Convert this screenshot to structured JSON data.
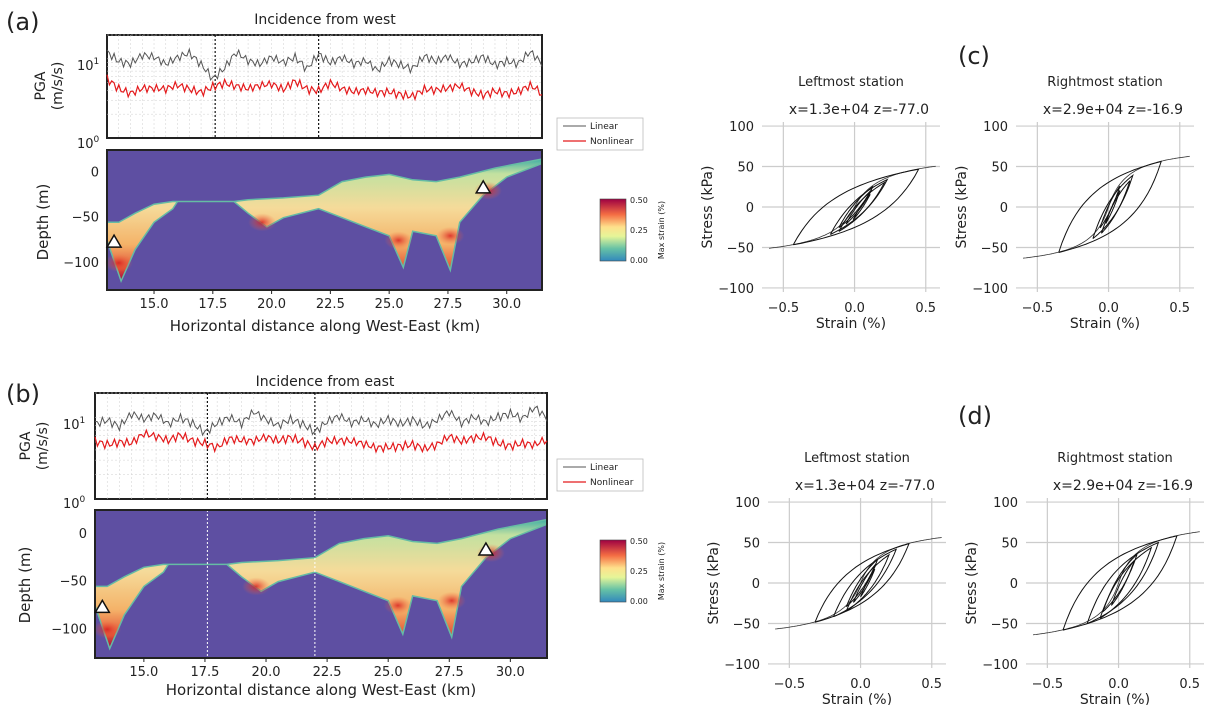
{
  "figure": {
    "panel_labels": {
      "a": "(a)",
      "b": "(b)",
      "c": "(c)",
      "d": "(d)"
    },
    "legend": {
      "linear": "Linear",
      "nonlinear": "Nonlinear"
    },
    "colors": {
      "linear": "#555555",
      "nonlinear": "#e41a1c",
      "domain": "#5e4fa2",
      "frame": "#222222",
      "grid": "#cccccc"
    }
  },
  "chart_data": [
    {
      "id": "a-pga",
      "type": "line",
      "title": "Incidence from west",
      "ylabel": "PGA\n(m/s/s)",
      "yscale": "log",
      "ylim": [
        1,
        20
      ],
      "xlim": [
        13.0,
        31.5
      ],
      "yticks": [
        "10^0",
        "10^1"
      ],
      "vlines": [
        17.6,
        22.0
      ],
      "series": [
        {
          "name": "Linear",
          "x": [
            13.0,
            13.5,
            14.0,
            14.5,
            15.0,
            15.5,
            16.0,
            16.5,
            17.0,
            17.5,
            18.0,
            18.5,
            19.0,
            19.5,
            20.0,
            20.5,
            21.0,
            21.5,
            22.0,
            22.5,
            23.0,
            23.5,
            24.0,
            24.5,
            25.0,
            25.5,
            26.0,
            26.5,
            27.0,
            27.5,
            28.0,
            28.5,
            29.0,
            29.5,
            30.0,
            30.5,
            31.0,
            31.5
          ],
          "y": [
            13,
            10,
            9,
            11,
            10,
            8,
            10,
            12,
            9,
            6,
            8,
            12,
            9,
            8,
            10,
            9,
            11,
            8,
            12,
            9,
            10,
            8,
            9,
            7,
            10,
            9,
            8,
            11,
            9,
            10,
            8,
            9,
            11,
            9,
            10,
            9,
            12,
            8
          ]
        },
        {
          "name": "Nonlinear",
          "x": [
            13.0,
            13.5,
            14.0,
            14.5,
            15.0,
            15.5,
            16.0,
            16.5,
            17.0,
            17.5,
            18.0,
            18.5,
            19.0,
            19.5,
            20.0,
            20.5,
            21.0,
            21.5,
            22.0,
            22.5,
            23.0,
            23.5,
            24.0,
            24.5,
            25.0,
            25.5,
            26.0,
            26.5,
            27.0,
            27.5,
            28.0,
            28.5,
            29.0,
            29.5,
            30.0,
            30.5,
            31.0,
            31.5
          ],
          "y": [
            6,
            4.5,
            3.8,
            4.2,
            4.0,
            3.9,
            4.5,
            4.2,
            4.0,
            4.8,
            5.2,
            4.5,
            4.0,
            4.3,
            4.6,
            4.1,
            5.5,
            4.5,
            4.2,
            5.0,
            4.0,
            3.6,
            3.8,
            3.7,
            4.0,
            3.8,
            3.6,
            4.2,
            3.9,
            4.0,
            4.3,
            3.8,
            3.6,
            4.2,
            3.9,
            4.0,
            4.5,
            3.5
          ]
        }
      ]
    },
    {
      "id": "a-strain",
      "type": "heatmap",
      "xlabel": "Horizontal distance along West-East (km)",
      "ylabel": "Depth (m)",
      "xlim": [
        13.0,
        31.5
      ],
      "ylim": [
        -130,
        25
      ],
      "xticks": [
        "15.0",
        "17.5",
        "20.0",
        "22.5",
        "25.0",
        "27.5",
        "30.0"
      ],
      "yticks": [
        "0",
        "−50",
        "−100"
      ],
      "colorbar": {
        "label": "Max strain (%)",
        "ticks": [
          "0.50",
          "0.25",
          "0.00"
        ],
        "range": [
          0,
          0.5
        ]
      },
      "stations": [
        {
          "x": 13.3,
          "z": -77.0
        },
        {
          "x": 29.0,
          "z": -16.9
        }
      ],
      "top_profile": [
        [
          13.0,
          -55
        ],
        [
          13.5,
          -55
        ],
        [
          14.2,
          -45
        ],
        [
          15.0,
          -35
        ],
        [
          15.8,
          -32
        ],
        [
          16.0,
          -32
        ],
        [
          18.4,
          -32
        ],
        [
          19.0,
          -30
        ],
        [
          20.5,
          -28
        ],
        [
          22.0,
          -25
        ],
        [
          23.0,
          -10
        ],
        [
          24.0,
          -5
        ],
        [
          25.0,
          -2
        ],
        [
          26.0,
          -8
        ],
        [
          27.0,
          -10
        ],
        [
          28.0,
          -5
        ],
        [
          29.5,
          5
        ],
        [
          30.5,
          10
        ],
        [
          31.5,
          15
        ]
      ],
      "bottom_profile": [
        [
          13.0,
          -75
        ],
        [
          13.6,
          -120
        ],
        [
          14.2,
          -85
        ],
        [
          15.0,
          -55
        ],
        [
          15.8,
          -40
        ],
        [
          16.0,
          -32
        ],
        [
          18.4,
          -32
        ],
        [
          19.0,
          -45
        ],
        [
          19.8,
          -60
        ],
        [
          20.5,
          -50
        ],
        [
          22.0,
          -40
        ],
        [
          23.0,
          -50
        ],
        [
          24.0,
          -60
        ],
        [
          25.0,
          -70
        ],
        [
          25.6,
          -105
        ],
        [
          26.0,
          -65
        ],
        [
          27.0,
          -70
        ],
        [
          27.6,
          -108
        ],
        [
          28.0,
          -55
        ],
        [
          29.0,
          -25
        ],
        [
          30.0,
          -5
        ],
        [
          31.0,
          5
        ],
        [
          31.5,
          10
        ]
      ]
    },
    {
      "id": "b-pga",
      "type": "line",
      "title": "Incidence from east",
      "ylabel": "PGA\n(m/s/s)",
      "yscale": "log",
      "ylim": [
        1,
        20
      ],
      "xlim": [
        13.0,
        31.5
      ],
      "yticks": [
        "10^0",
        "10^1"
      ],
      "vlines": [
        17.6,
        22.0
      ],
      "series": [
        {
          "name": "Linear",
          "x": [
            13.0,
            13.5,
            14.0,
            14.5,
            15.0,
            15.5,
            16.0,
            16.5,
            17.0,
            17.5,
            18.0,
            18.5,
            19.0,
            19.5,
            20.0,
            20.5,
            21.0,
            21.5,
            22.0,
            22.5,
            23.0,
            23.5,
            24.0,
            24.5,
            25.0,
            25.5,
            26.0,
            26.5,
            27.0,
            27.5,
            28.0,
            28.5,
            29.0,
            29.5,
            30.0,
            30.5,
            31.0,
            31.5
          ],
          "y": [
            9,
            10,
            8,
            11,
            9,
            10,
            8,
            10,
            9,
            7,
            9,
            10,
            8,
            11,
            9,
            8,
            10,
            9,
            7,
            9,
            10,
            8,
            9,
            8,
            10,
            9,
            10,
            8,
            9,
            11,
            8,
            10,
            9,
            11,
            12,
            10,
            13,
            9
          ]
        },
        {
          "name": "Nonlinear",
          "x": [
            13.0,
            13.5,
            14.0,
            14.5,
            15.0,
            15.5,
            16.0,
            16.5,
            17.0,
            17.5,
            18.0,
            18.5,
            19.0,
            19.5,
            20.0,
            20.5,
            21.0,
            21.5,
            22.0,
            22.5,
            23.0,
            23.5,
            24.0,
            24.5,
            25.0,
            25.5,
            26.0,
            26.5,
            27.0,
            27.5,
            28.0,
            28.5,
            29.0,
            29.5,
            30.0,
            30.5,
            31.0,
            31.5
          ],
          "y": [
            5.5,
            5,
            5.2,
            4.8,
            6,
            5.5,
            5,
            6.2,
            5.5,
            5.2,
            4.5,
            5.5,
            5,
            4.8,
            5.5,
            5.2,
            6,
            5.5,
            4.5,
            5.2,
            5,
            4.8,
            4.5,
            4.2,
            4.5,
            4.8,
            5,
            4.2,
            4.5,
            5.5,
            4.8,
            5.5,
            6,
            5.2,
            4.8,
            5,
            4.5,
            5.2
          ]
        }
      ]
    },
    {
      "id": "b-strain",
      "type": "heatmap",
      "xlabel": "Horizontal distance along West-East (km)",
      "ylabel": "Depth (m)",
      "xlim": [
        13.0,
        31.5
      ],
      "ylim": [
        -130,
        25
      ],
      "xticks": [
        "15.0",
        "17.5",
        "20.0",
        "22.5",
        "25.0",
        "27.5",
        "30.0"
      ],
      "yticks": [
        "0",
        "−50",
        "−100"
      ],
      "vlines": [
        17.6,
        22.0
      ],
      "colorbar": {
        "label": "Max strain (%)",
        "ticks": [
          "0.50",
          "0.25",
          "0.00"
        ],
        "range": [
          0,
          0.5
        ]
      },
      "stations": [
        {
          "x": 13.3,
          "z": -77.0
        },
        {
          "x": 29.0,
          "z": -16.9
        }
      ],
      "top_profile": [
        [
          13.0,
          -55
        ],
        [
          13.5,
          -55
        ],
        [
          14.2,
          -45
        ],
        [
          15.0,
          -35
        ],
        [
          15.8,
          -32
        ],
        [
          16.0,
          -32
        ],
        [
          18.4,
          -32
        ],
        [
          19.0,
          -30
        ],
        [
          20.5,
          -28
        ],
        [
          22.0,
          -25
        ],
        [
          23.0,
          -10
        ],
        [
          24.0,
          -5
        ],
        [
          25.0,
          -2
        ],
        [
          26.0,
          -8
        ],
        [
          27.0,
          -10
        ],
        [
          28.0,
          -5
        ],
        [
          29.5,
          5
        ],
        [
          30.5,
          10
        ],
        [
          31.5,
          15
        ]
      ],
      "bottom_profile": [
        [
          13.0,
          -75
        ],
        [
          13.6,
          -120
        ],
        [
          14.2,
          -85
        ],
        [
          15.0,
          -55
        ],
        [
          15.8,
          -40
        ],
        [
          16.0,
          -32
        ],
        [
          18.4,
          -32
        ],
        [
          19.0,
          -45
        ],
        [
          19.8,
          -60
        ],
        [
          20.5,
          -50
        ],
        [
          22.0,
          -40
        ],
        [
          23.0,
          -50
        ],
        [
          24.0,
          -60
        ],
        [
          25.0,
          -70
        ],
        [
          25.6,
          -105
        ],
        [
          26.0,
          -65
        ],
        [
          27.0,
          -70
        ],
        [
          27.6,
          -108
        ],
        [
          28.0,
          -55
        ],
        [
          29.0,
          -25
        ],
        [
          30.0,
          -5
        ],
        [
          31.0,
          5
        ],
        [
          31.5,
          10
        ]
      ]
    },
    {
      "id": "c-left",
      "type": "line",
      "suptitle": "Leftmost station",
      "title": "x=1.3e+04  z=-77.0",
      "xlabel": "Strain (%)",
      "ylabel": "Stress (kPa)",
      "xlim": [
        -0.65,
        0.6
      ],
      "ylim": [
        -105,
        105
      ],
      "xticks": [
        "−0.5",
        "0.0",
        "0.5"
      ],
      "yticks": [
        "100",
        "50",
        "0",
        "−50",
        "−100"
      ],
      "backbone_max_stress": 68,
      "backbone_ref_strain": 0.2,
      "loop_amplitudes": [
        0.44,
        0.2,
        0.16,
        0.12,
        0.09,
        0.06
      ]
    },
    {
      "id": "c-right",
      "type": "line",
      "suptitle": "Rightmost station",
      "title": "x=2.9e+04  z=-16.9",
      "xlabel": "Strain (%)",
      "ylabel": "Stress (kPa)",
      "xlim": [
        -0.65,
        0.6
      ],
      "ylim": [
        -105,
        105
      ],
      "xticks": [
        "−0.5",
        "0.0",
        "0.5"
      ],
      "yticks": [
        "100",
        "50",
        "0",
        "−50",
        "−100"
      ],
      "backbone_max_stress": 78,
      "backbone_ref_strain": 0.14,
      "loop_amplitudes": [
        0.36,
        0.14,
        0.1,
        0.07,
        0.05
      ]
    },
    {
      "id": "d-left",
      "type": "line",
      "suptitle": "Leftmost station",
      "title": "x=1.3e+04  z=-77.0",
      "xlabel": "Strain (%)",
      "ylabel": "Stress (kPa)",
      "xlim": [
        -0.65,
        0.6
      ],
      "ylim": [
        -105,
        105
      ],
      "xticks": [
        "−0.5",
        "0.0",
        "0.5"
      ],
      "yticks": [
        "100",
        "50",
        "0",
        "−50",
        "−100"
      ],
      "backbone_max_stress": 72,
      "backbone_ref_strain": 0.16,
      "loop_amplitudes": [
        0.33,
        0.22,
        0.15,
        0.11,
        0.08,
        0.05
      ]
    },
    {
      "id": "d-right",
      "type": "line",
      "suptitle": "Rightmost station",
      "title": "x=2.9e+04  z=-16.9",
      "xlabel": "Strain (%)",
      "ylabel": "Stress (kPa)",
      "xlim": [
        -0.65,
        0.6
      ],
      "ylim": [
        -105,
        105
      ],
      "xticks": [
        "−0.5",
        "0.0",
        "0.5"
      ],
      "yticks": [
        "100",
        "50",
        "0",
        "−50",
        "−100"
      ],
      "backbone_max_stress": 80,
      "backbone_ref_strain": 0.15,
      "loop_amplitudes": [
        0.4,
        0.25,
        0.18,
        0.12,
        0.08
      ]
    }
  ]
}
